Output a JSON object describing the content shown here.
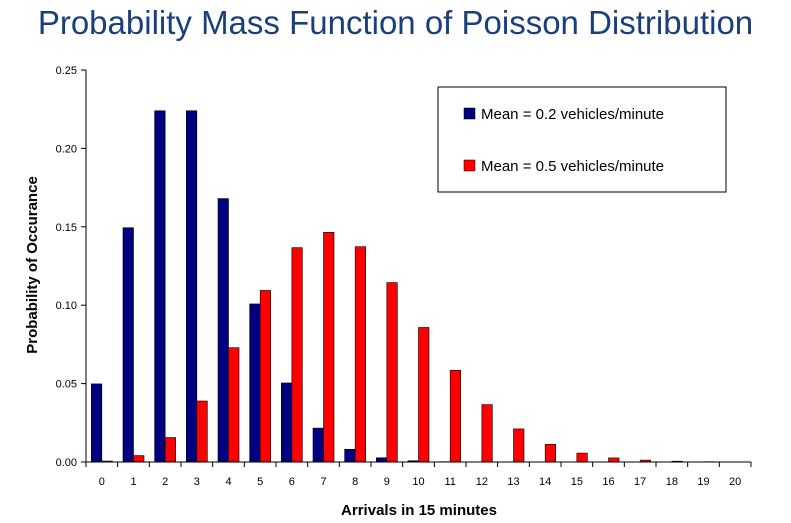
{
  "page": {
    "title": "Probability Mass Function of Poisson Distribution"
  },
  "chart_data": {
    "type": "bar",
    "title": "Probability Mass Function of Poisson Distribution",
    "xlabel": "Arrivals in 15 minutes",
    "ylabel": "Probability of Occurance",
    "categories": [
      "0",
      "1",
      "2",
      "3",
      "4",
      "5",
      "6",
      "7",
      "8",
      "9",
      "10",
      "11",
      "12",
      "13",
      "14",
      "15",
      "16",
      "17",
      "18",
      "19",
      "20"
    ],
    "ylim": [
      0,
      0.25
    ],
    "yticks": [
      "0.00",
      "0.05",
      "0.10",
      "0.15",
      "0.20",
      "0.25"
    ],
    "grid": false,
    "legend_position": "top-right",
    "series": [
      {
        "name": "Mean = 0.2 vehicles/minute",
        "color": "#000080",
        "values": [
          0.0498,
          0.1494,
          0.224,
          0.224,
          0.168,
          0.1008,
          0.0504,
          0.0216,
          0.0081,
          0.0027,
          0.0008,
          0.0002,
          0.0001,
          0,
          0,
          0,
          0,
          0,
          0,
          0,
          0
        ]
      },
      {
        "name": "Mean = 0.5 vehicles/minute",
        "color": "#ff0000",
        "values": [
          0.0006,
          0.0041,
          0.0156,
          0.0389,
          0.0729,
          0.1094,
          0.1367,
          0.1465,
          0.1373,
          0.1144,
          0.0858,
          0.0585,
          0.0366,
          0.0211,
          0.0113,
          0.0057,
          0.0026,
          0.0012,
          0.0005,
          0.0002,
          0.0001
        ]
      }
    ]
  }
}
